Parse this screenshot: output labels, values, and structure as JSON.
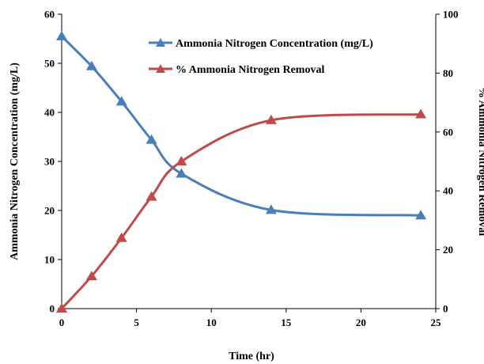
{
  "chart_data": {
    "type": "line",
    "xlabel": "Time (hr)",
    "ylabel_left": "Ammonia Nitrogen Concentration (mg/L)",
    "ylabel_right": "% Ammonia Nitrogen Removal",
    "xlim": [
      0,
      25
    ],
    "xticks": [
      0,
      5,
      10,
      15,
      20,
      25
    ],
    "ylim_left": [
      0,
      60
    ],
    "yticks_left": [
      0,
      10,
      20,
      30,
      40,
      50,
      60
    ],
    "ylim_right": [
      0,
      100
    ],
    "yticks_right": [
      0,
      20,
      40,
      60,
      80,
      100
    ],
    "grid": false,
    "legend_position": "top-right",
    "series": [
      {
        "name": "Ammonia Nitrogen Concentration (mg/L)",
        "axis": "left",
        "color": "#4a7ebb",
        "marker": "triangle",
        "x": [
          0,
          2,
          4,
          6,
          8,
          14,
          24
        ],
        "y": [
          55.5,
          49.4,
          42.2,
          34.4,
          27.5,
          20.1,
          19.0
        ]
      },
      {
        "name": "% Ammonia Nitrogen Removal",
        "axis": "right",
        "color": "#be4b48",
        "marker": "triangle",
        "x": [
          0,
          2,
          4,
          6,
          8,
          14,
          24
        ],
        "y": [
          0,
          11,
          24,
          38,
          50,
          64,
          66
        ]
      }
    ]
  }
}
